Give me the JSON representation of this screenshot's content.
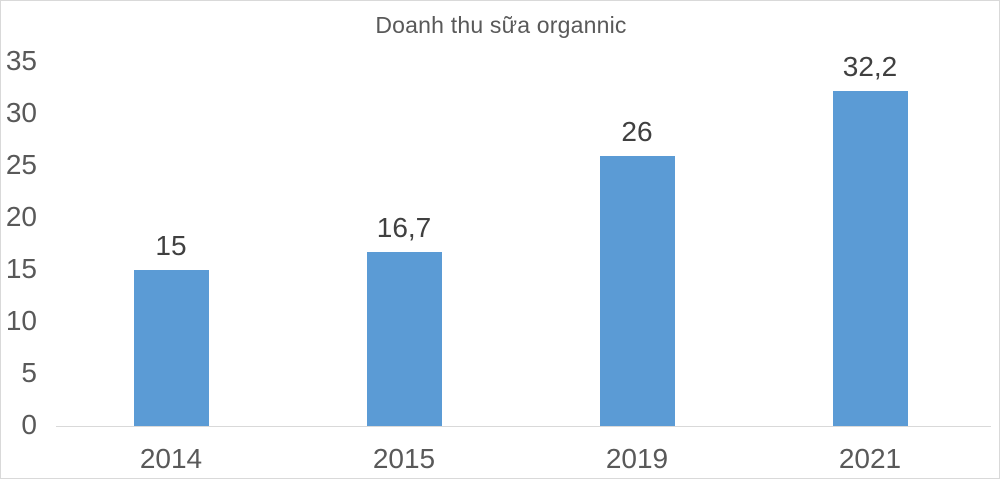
{
  "chart": {
    "bar_color": "#5b9bd5",
    "axis_line_color": "#d9d9d9",
    "frame_border_color": "#d9d9d9",
    "title_color": "#595959",
    "tick_label_color": "#595959",
    "data_label_color": "#404040"
  },
  "chart_data": {
    "type": "bar",
    "title": "Doanh thu sữa organnic",
    "categories": [
      "2014",
      "2015",
      "2019",
      "2021"
    ],
    "values": [
      15,
      16.7,
      26,
      32.2
    ],
    "value_labels": [
      "15",
      "16,7",
      "26",
      "32,2"
    ],
    "series": [
      {
        "name": "Doanh thu sữa organnic",
        "values": [
          15,
          16.7,
          26,
          32.2
        ]
      }
    ],
    "xlabel": "",
    "ylabel": "",
    "ylim": [
      0,
      35
    ],
    "yticks": [
      0,
      5,
      10,
      15,
      20,
      25,
      30,
      35
    ],
    "ytick_labels": [
      "0",
      "5",
      "10",
      "15",
      "20",
      "25",
      "30",
      "35"
    ],
    "grid": false,
    "legend": false,
    "bar_color": "#5b9bd5"
  }
}
